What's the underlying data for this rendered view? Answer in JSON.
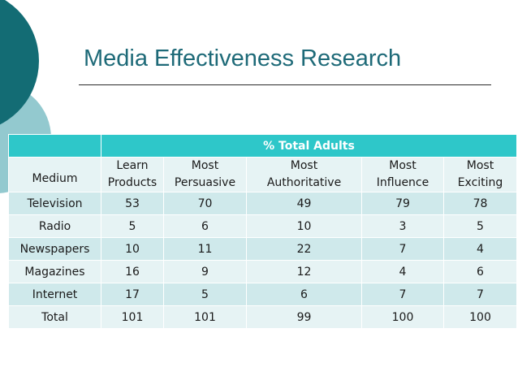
{
  "title": "Media Effectiveness Research",
  "table": {
    "group_header": "% Total Adults",
    "columns": [
      {
        "line1": "Medium",
        "line2": ""
      },
      {
        "line1": "Learn",
        "line2": "Products"
      },
      {
        "line1": "Most",
        "line2": "Persuasive"
      },
      {
        "line1": "Most",
        "line2": "Authoritative"
      },
      {
        "line1": "Most",
        "line2": "Influence"
      },
      {
        "line1": "Most",
        "line2": "Exciting"
      }
    ],
    "rows": [
      [
        "Television",
        "53",
        "70",
        "49",
        "79",
        "78"
      ],
      [
        "Radio",
        "5",
        "6",
        "10",
        "3",
        "5"
      ],
      [
        "Newspapers",
        "10",
        "11",
        "22",
        "7",
        "4"
      ],
      [
        "Magazines",
        "16",
        "9",
        "12",
        "4",
        "6"
      ],
      [
        "Internet",
        "17",
        "5",
        "6",
        "7",
        "7"
      ],
      [
        "Total",
        "101",
        "101",
        "99",
        "100",
        "100"
      ]
    ]
  },
  "colors": {
    "header_accent": "#2ec7c9",
    "row_light": "#e6f3f4",
    "row_mid": "#cfe9eb",
    "title": "#1e6a78",
    "deco_dark": "#136c74",
    "deco_light": "#93c9cf"
  }
}
